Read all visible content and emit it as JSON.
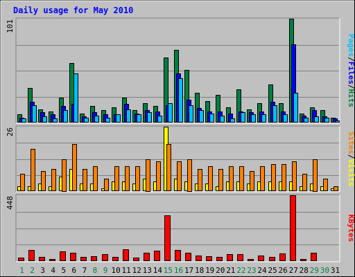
{
  "colors": {
    "background": "#c0c0c0",
    "title": "#0000ff",
    "hits": "#008040",
    "files": "#0000ff",
    "pages": "#00c0ff",
    "visits": "#ffff00",
    "sites": "#ff8000",
    "kbytes": "#ff0000",
    "weekend_day": "#008040"
  },
  "chart_data": {
    "type": "bar",
    "title": "Daily usage for May 2010",
    "days": [
      "1",
      "2",
      "3",
      "4",
      "5",
      "6",
      "7",
      "8",
      "9",
      "10",
      "11",
      "12",
      "13",
      "14",
      "15",
      "16",
      "17",
      "18",
      "19",
      "20",
      "21",
      "22",
      "23",
      "24",
      "25",
      "26",
      "27",
      "28",
      "29",
      "30",
      "31"
    ],
    "weekend_days": [
      "1",
      "2",
      "8",
      "9",
      "15",
      "16",
      "22",
      "23",
      "29",
      "30"
    ],
    "panels": [
      {
        "id": "hits-files-pages",
        "y_max_label": "101",
        "y_max": 101,
        "legend": [
          {
            "key": "pages",
            "text": "Pages"
          },
          {
            "key": "files",
            "text": "Files"
          },
          {
            "key": "hits",
            "text": "Hits"
          }
        ],
        "legend_sep": "/",
        "series": [
          {
            "key": "hits",
            "name": "Hits",
            "values": [
              8,
              34,
              13,
              11,
              24,
              58,
              9,
              16,
              12,
              15,
              24,
              12,
              19,
              16,
              63,
              71,
              51,
              29,
              21,
              27,
              15,
              32,
              13,
              19,
              37,
              19,
              101,
              9,
              15,
              12,
              5
            ]
          },
          {
            "key": "files",
            "name": "Files",
            "values": [
              5,
              20,
              10,
              8,
              16,
              18,
              6,
              10,
              8,
              8,
              18,
              9,
              12,
              11,
              17,
              48,
              22,
              14,
              11,
              11,
              9,
              11,
              10,
              11,
              20,
              11,
              76,
              7,
              12,
              6,
              4
            ]
          },
          {
            "key": "pages",
            "name": "Pages",
            "values": [
              4,
              17,
              6,
              4,
              12,
              48,
              5,
              7,
              5,
              8,
              13,
              8,
              10,
              7,
              19,
              43,
              17,
              12,
              9,
              7,
              4,
              10,
              8,
              8,
              17,
              8,
              29,
              5,
              6,
              5,
              2
            ]
          }
        ]
      },
      {
        "id": "visits-sites",
        "y_max_label": "26",
        "y_max": 26,
        "legend": [
          {
            "key": "sites",
            "text": "Sites"
          },
          {
            "key": "visits",
            "text": "Visits"
          }
        ],
        "legend_sep": "/",
        "series": [
          {
            "key": "visits",
            "name": "Visits",
            "values": [
              2,
              2,
              3,
              2,
              6,
              9,
              3,
              3,
              1,
              4,
              4,
              3,
              5,
              4,
              26,
              5,
              4,
              3,
              3,
              2,
              4,
              4,
              3,
              4,
              4,
              4,
              4,
              2,
              3,
              2,
              1
            ]
          },
          {
            "key": "sites",
            "name": "Sites",
            "values": [
              7,
              17,
              8,
              9,
              13,
              19,
              9,
              10,
              5,
              10,
              10,
              10,
              13,
              12,
              19,
              12,
              13,
              9,
              10,
              9,
              10,
              10,
              8,
              10,
              11,
              11,
              12,
              7,
              13,
              5,
              2
            ]
          }
        ]
      },
      {
        "id": "kbytes",
        "y_max_label": "448",
        "y_max": 448,
        "legend": [
          {
            "key": "kbytes",
            "text": "KBytes"
          }
        ],
        "legend_sep": "",
        "series": [
          {
            "key": "kbytes",
            "name": "KBytes",
            "values": [
              25,
              77,
              28,
              15,
              65,
              57,
              26,
              33,
              48,
              28,
              80,
              25,
              55,
              70,
              310,
              77,
              55,
              40,
              33,
              28,
              47,
              47,
              12,
              40,
              27,
              54,
              448,
              12,
              58,
              5,
              4
            ]
          }
        ]
      }
    ]
  }
}
